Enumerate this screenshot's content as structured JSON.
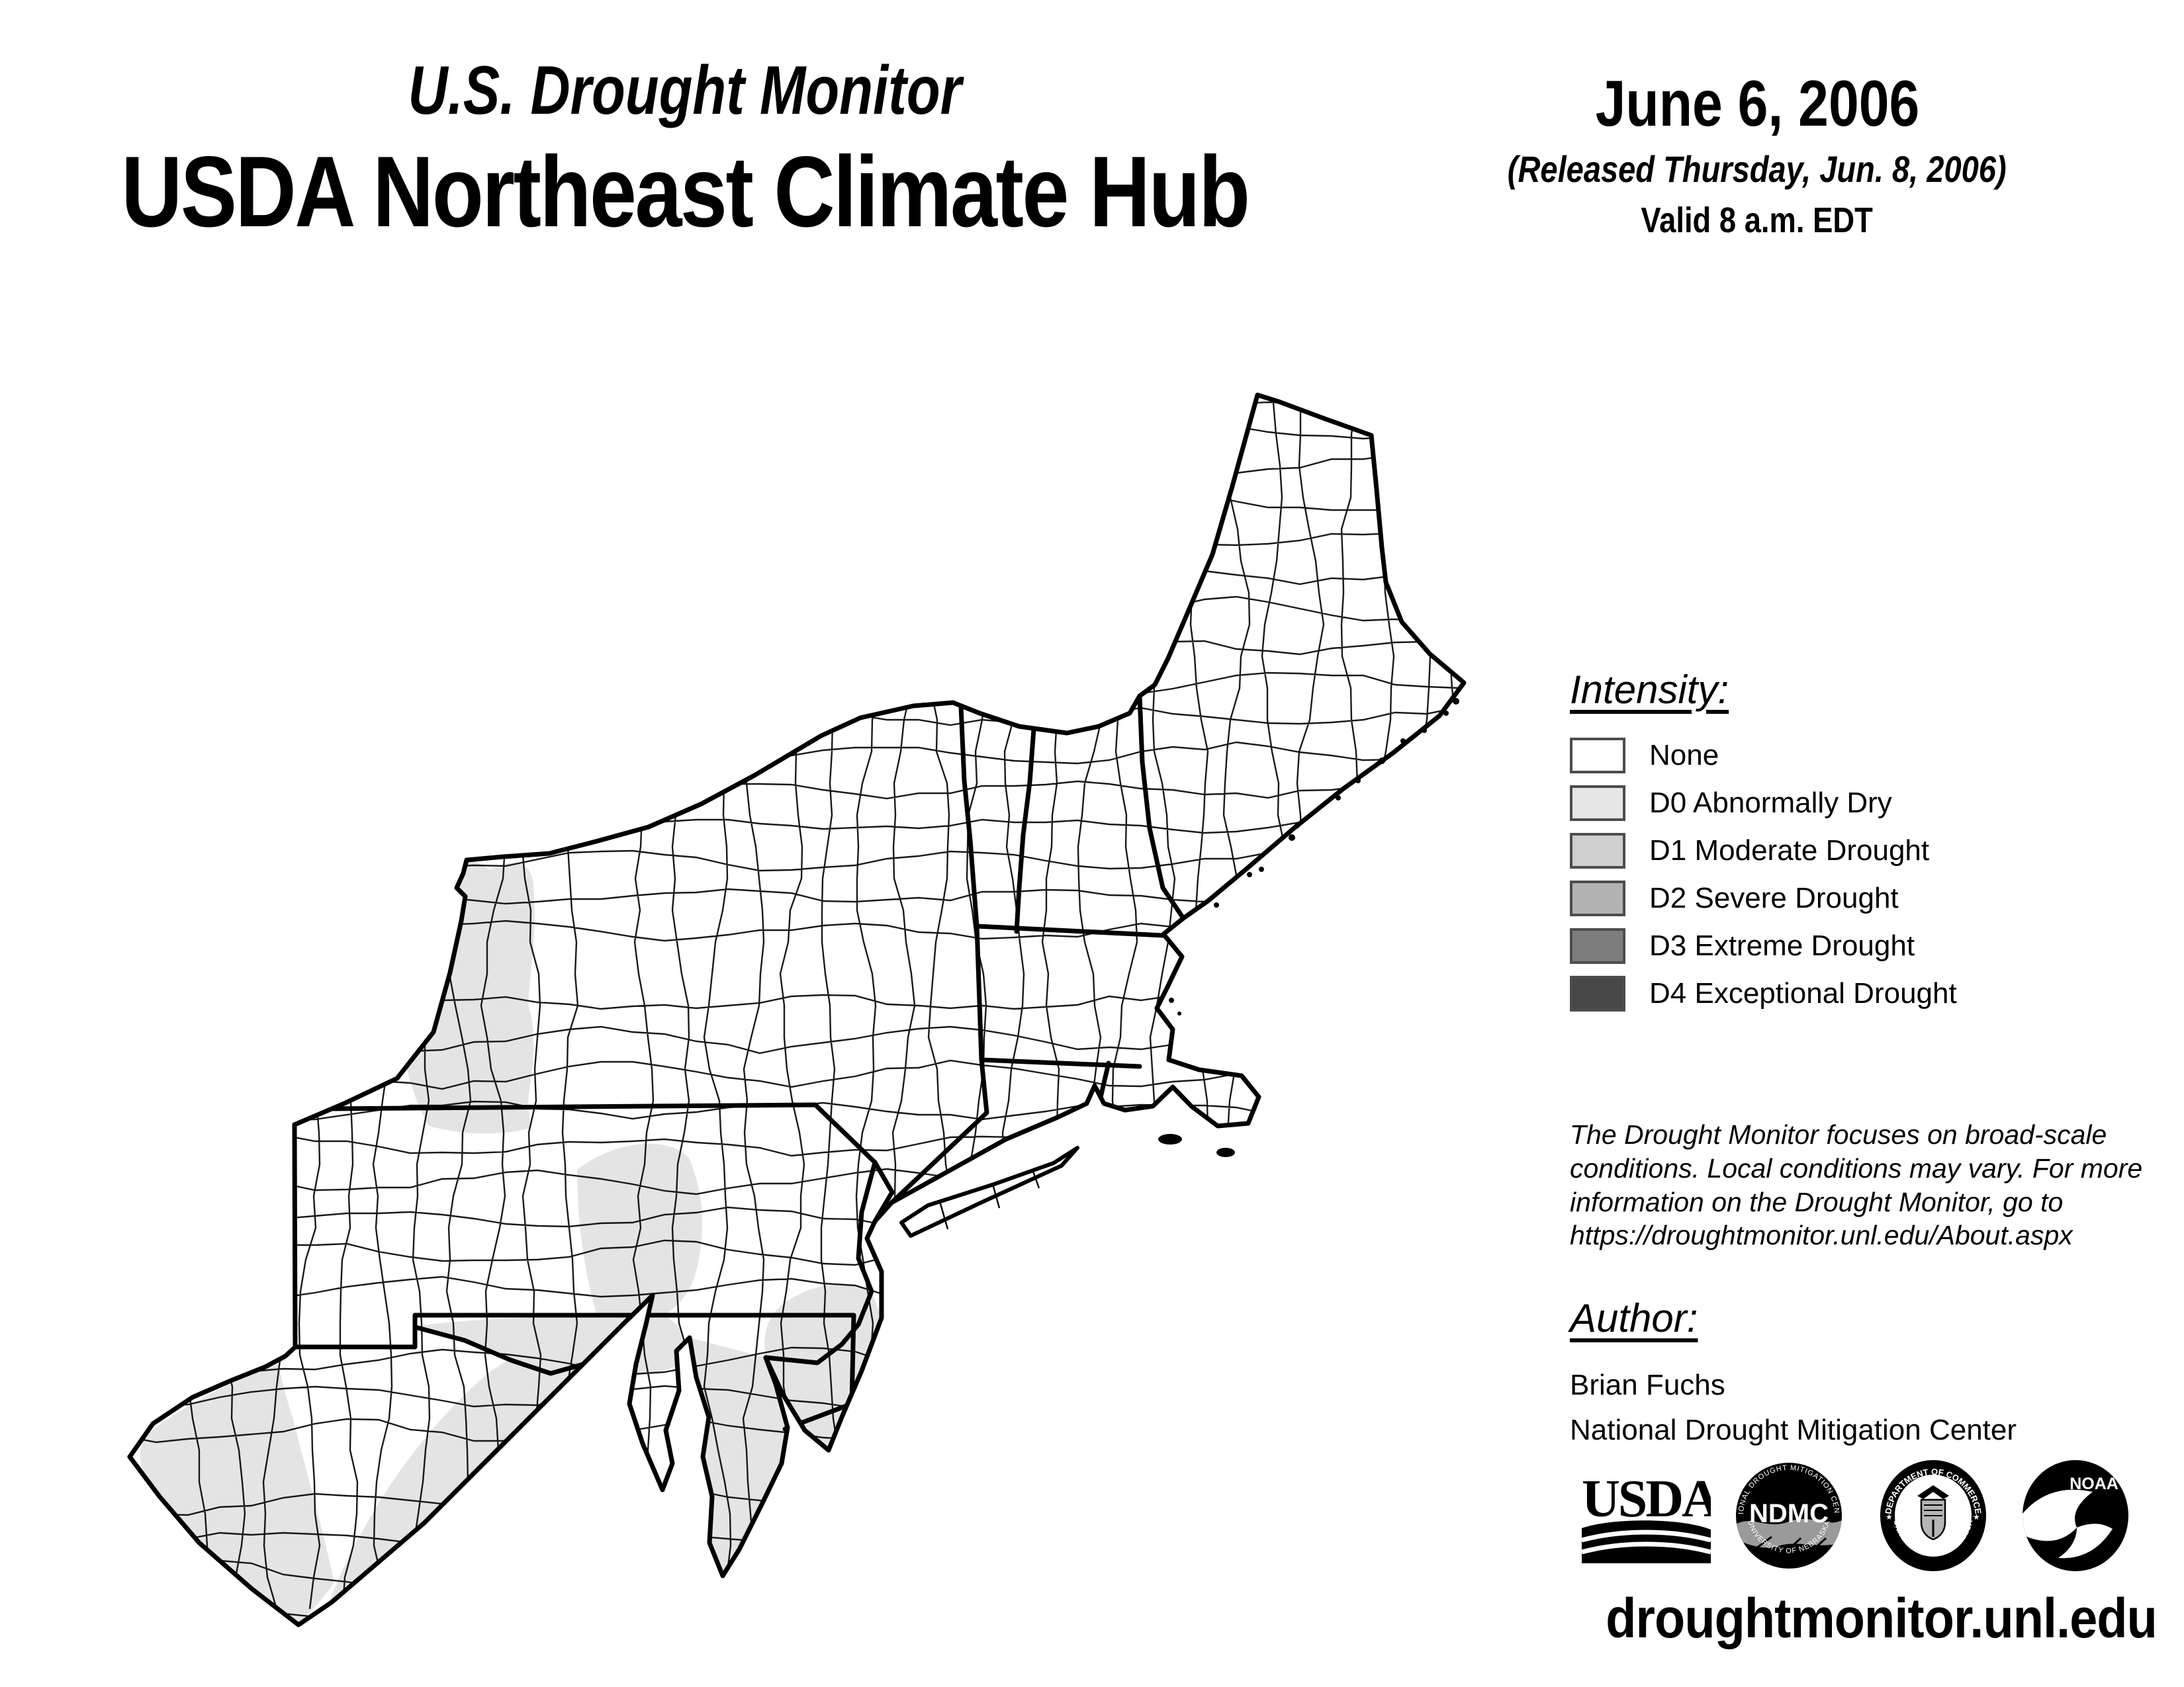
{
  "header": {
    "title_small": "U.S. Drought Monitor",
    "title_large": "USDA Northeast Climate Hub"
  },
  "date_block": {
    "date": "June 6, 2006",
    "released": "(Released Thursday, Jun. 8, 2006)",
    "valid": "Valid 8 a.m. EDT"
  },
  "legend": {
    "heading": "Intensity:",
    "swatch_border": "#4d4d4d",
    "items": [
      {
        "label": "None",
        "color": "#ffffff"
      },
      {
        "label": "D0 Abnormally Dry",
        "color": "#e6e6e6"
      },
      {
        "label": "D1 Moderate Drought",
        "color": "#cfcfcf"
      },
      {
        "label": "D2 Severe Drought",
        "color": "#b3b3b3"
      },
      {
        "label": "D3 Extreme Drought",
        "color": "#7d7d7d"
      },
      {
        "label": "D4 Exceptional Drought",
        "color": "#474747"
      }
    ]
  },
  "disclaimer": "The Drought Monitor focuses on broad-scale\nconditions. Local conditions may vary. For more\ninformation on the Drought Monitor, go to\nhttps://droughtmonitor.unl.edu/About.aspx",
  "author_block": {
    "heading": "Author:",
    "name": "Brian Fuchs",
    "org": "National Drought Mitigation Center"
  },
  "logos": {
    "usda": {
      "label": "USDA"
    },
    "ndmc": {
      "center": "NDMC",
      "ring_top": "NATIONAL DROUGHT MITIGATION CENTER",
      "ring_bottom": "UNIVERSITY OF NEBRASKA"
    },
    "doc": {
      "ring_top": "DEPARTMENT OF COMMERCE",
      "ring_bottom": "UNITED STATES OF AMERICA"
    },
    "noaa": {
      "label": "NOAA"
    }
  },
  "footer": {
    "url": "droughtmonitor.unl.edu"
  },
  "map": {
    "region": "USDA Northeast Climate Hub area (WV, MD, DE, PA, NJ, NY, CT, RI, MA, VT, NH, ME)",
    "d0_color": "#e4e4e4",
    "drought_shown": "D0 Abnormally Dry patches over western New York, south-central Pennsylvania, Maryland, West Virginia, Delmarva / Delaware and southern New Jersey"
  }
}
